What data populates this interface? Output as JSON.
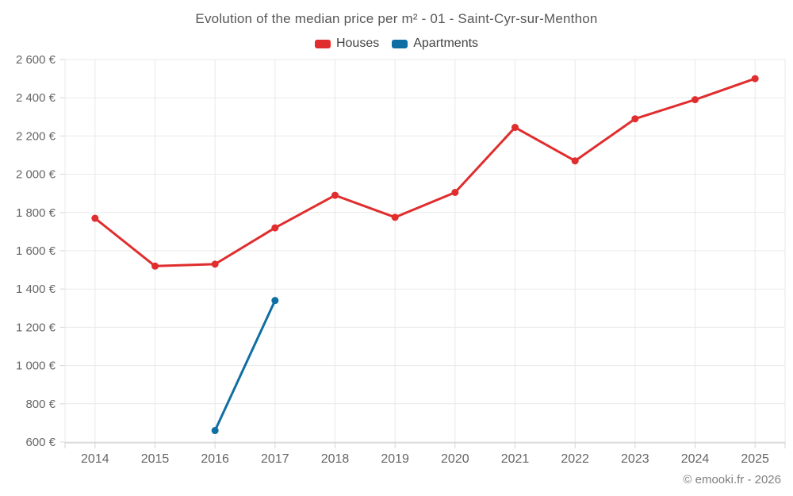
{
  "footer": {
    "credit": "© emooki.fr - 2026"
  },
  "colors": {
    "houses": "#e02d2d",
    "apartments": "#0f6fa2",
    "grid": "#e9e9e9",
    "axis_line": "#cccccc",
    "tick": "#d6d6d6",
    "axis_text": "#666666",
    "title_text": "#575757",
    "background": "#ffffff"
  },
  "chart_data": {
    "type": "line",
    "title": "Evolution of the median price per m² - 01 - Saint-Cyr-sur-Menthon",
    "categories": [
      "2014",
      "2015",
      "2016",
      "2017",
      "2018",
      "2019",
      "2020",
      "2021",
      "2022",
      "2023",
      "2024",
      "2025"
    ],
    "series": [
      {
        "name": "Houses",
        "color": "#e02d2d",
        "values": [
          1770,
          1520,
          1530,
          1720,
          1890,
          1775,
          1905,
          2245,
          2070,
          2290,
          2390,
          2500
        ]
      },
      {
        "name": "Apartments",
        "color": "#0f6fa2",
        "values": [
          null,
          null,
          660,
          1340,
          null,
          null,
          null,
          null,
          null,
          null,
          null,
          null
        ]
      }
    ],
    "xlabel": "",
    "ylabel": "",
    "ylim": [
      600,
      2600
    ],
    "ytick_step": 200,
    "y_unit": "€",
    "grid": true,
    "legend_position": "top",
    "marker": "circle"
  }
}
